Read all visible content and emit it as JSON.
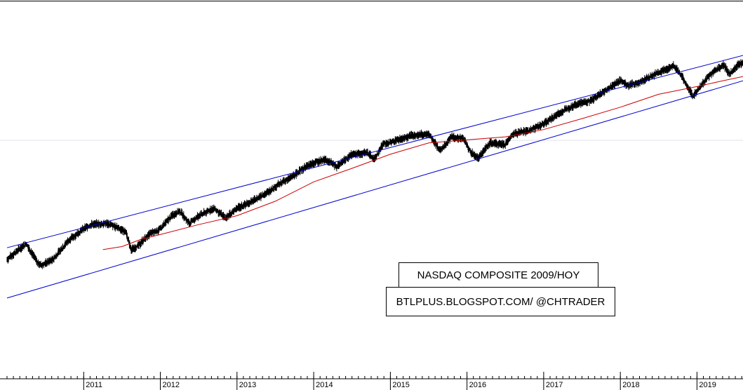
{
  "chart_data": {
    "type": "line",
    "title": "NASDAQ COMPOSITE 2009/HOY",
    "subtitle": "BTLPLUS.BLOGSPOT.COM/ @CHTRADER",
    "xlabel": "",
    "ylabel": "",
    "x_ticks": [
      "2011",
      "2012",
      "2013",
      "2014",
      "2015",
      "2016",
      "2017",
      "2018",
      "2019"
    ],
    "x_range": [
      2010.0,
      2019.6
    ],
    "y_scale": "log",
    "grid": "single faint horizontal reference line",
    "series": [
      {
        "color": "#000000",
        "style": "daily price bars",
        "points": [
          [
            2010.0,
            2200
          ],
          [
            2010.1,
            2300
          ],
          [
            2010.25,
            2450
          ],
          [
            2010.4,
            2150
          ],
          [
            2010.45,
            2120
          ],
          [
            2010.6,
            2200
          ],
          [
            2010.8,
            2500
          ],
          [
            2011.0,
            2700
          ],
          [
            2011.1,
            2780
          ],
          [
            2011.3,
            2800
          ],
          [
            2011.45,
            2720
          ],
          [
            2011.55,
            2650
          ],
          [
            2011.62,
            2350
          ],
          [
            2011.7,
            2400
          ],
          [
            2011.85,
            2600
          ],
          [
            2012.0,
            2700
          ],
          [
            2012.15,
            2950
          ],
          [
            2012.25,
            3050
          ],
          [
            2012.38,
            2800
          ],
          [
            2012.5,
            2950
          ],
          [
            2012.7,
            3100
          ],
          [
            2012.85,
            2900
          ],
          [
            2013.0,
            3100
          ],
          [
            2013.2,
            3250
          ],
          [
            2013.4,
            3450
          ],
          [
            2013.55,
            3650
          ],
          [
            2013.7,
            3800
          ],
          [
            2013.9,
            4100
          ],
          [
            2014.0,
            4200
          ],
          [
            2014.15,
            4300
          ],
          [
            2014.3,
            4100
          ],
          [
            2014.5,
            4450
          ],
          [
            2014.7,
            4500
          ],
          [
            2014.79,
            4300
          ],
          [
            2014.9,
            4750
          ],
          [
            2015.1,
            4900
          ],
          [
            2015.3,
            5050
          ],
          [
            2015.5,
            5100
          ],
          [
            2015.6,
            4750
          ],
          [
            2015.65,
            4550
          ],
          [
            2015.8,
            5000
          ],
          [
            2015.95,
            4950
          ],
          [
            2016.05,
            4500
          ],
          [
            2016.15,
            4350
          ],
          [
            2016.3,
            4800
          ],
          [
            2016.5,
            4750
          ],
          [
            2016.6,
            5100
          ],
          [
            2016.8,
            5200
          ],
          [
            2017.0,
            5450
          ],
          [
            2017.2,
            5850
          ],
          [
            2017.4,
            6200
          ],
          [
            2017.6,
            6350
          ],
          [
            2017.8,
            6800
          ],
          [
            2018.0,
            7300
          ],
          [
            2018.1,
            7050
          ],
          [
            2018.25,
            7200
          ],
          [
            2018.5,
            7700
          ],
          [
            2018.7,
            8050
          ],
          [
            2018.8,
            7500
          ],
          [
            2018.95,
            6550
          ],
          [
            2019.0,
            6800
          ],
          [
            2019.2,
            7700
          ],
          [
            2019.35,
            8100
          ],
          [
            2019.42,
            7600
          ],
          [
            2019.55,
            8150
          ],
          [
            2019.62,
            8250
          ]
        ]
      },
      {
        "color": "#cc0000",
        "style": "moving average",
        "points": [
          [
            2011.25,
            2350
          ],
          [
            2011.5,
            2400
          ],
          [
            2011.75,
            2520
          ],
          [
            2012.0,
            2600
          ],
          [
            2012.5,
            2780
          ],
          [
            2013.0,
            2950
          ],
          [
            2013.5,
            3250
          ],
          [
            2014.0,
            3700
          ],
          [
            2014.5,
            4050
          ],
          [
            2015.0,
            4450
          ],
          [
            2015.5,
            4800
          ],
          [
            2016.0,
            4900
          ],
          [
            2016.5,
            5000
          ],
          [
            2017.0,
            5250
          ],
          [
            2017.5,
            5650
          ],
          [
            2018.0,
            6100
          ],
          [
            2018.5,
            6650
          ],
          [
            2019.0,
            7000
          ],
          [
            2019.3,
            7250
          ],
          [
            2019.62,
            7500
          ]
        ]
      },
      {
        "color": "#0000cc",
        "style": "upper channel line",
        "points": [
          [
            2010.0,
            2380
          ],
          [
            2019.62,
            8650
          ]
        ]
      },
      {
        "color": "#0000cc",
        "style": "lower channel line",
        "points": [
          [
            2010.0,
            1700
          ],
          [
            2019.62,
            7300
          ]
        ]
      }
    ]
  }
}
